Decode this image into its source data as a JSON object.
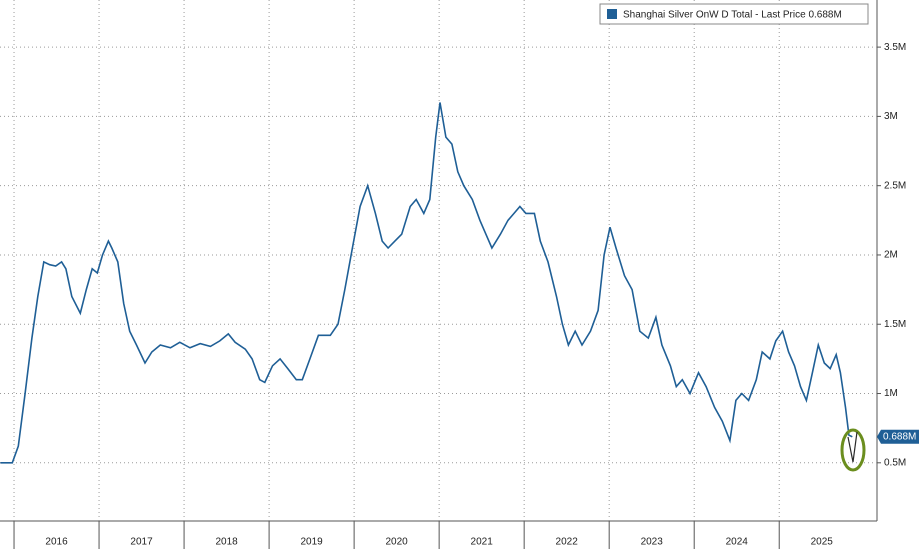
{
  "chart_data": {
    "type": "line",
    "series": [
      {
        "name": "Shanghai Silver OnW D Total - Last Price 0.688M",
        "color": "#1f5f96",
        "values": [
          0.5,
          0.5,
          0.62,
          1.0,
          1.4,
          1.7,
          1.95,
          1.93,
          1.92,
          1.95,
          1.9,
          1.7,
          1.58,
          1.75,
          1.9,
          1.87,
          2.0,
          2.1,
          2.05,
          1.95,
          1.65,
          1.45,
          1.35,
          1.22,
          1.3,
          1.35,
          1.33,
          1.37,
          1.33,
          1.36,
          1.34,
          1.38,
          1.43,
          1.37,
          1.32,
          1.25,
          1.1,
          1.08,
          1.2,
          1.25,
          1.18,
          1.1,
          1.1,
          1.25,
          1.42,
          1.42,
          1.5,
          1.75,
          2.05,
          2.35,
          2.5,
          2.3,
          2.1,
          2.05,
          2.1,
          2.15,
          2.35,
          2.4,
          2.3,
          2.4,
          2.85,
          3.1,
          2.85,
          2.8,
          2.6,
          2.5,
          2.4,
          2.25,
          2.15,
          2.05,
          2.15,
          2.25,
          2.3,
          2.35,
          2.3,
          2.3,
          2.1,
          1.95,
          1.7,
          1.5,
          1.35,
          1.45,
          1.35,
          1.45,
          1.6,
          2.0,
          2.2,
          2.05,
          1.85,
          1.75,
          1.45,
          1.4,
          1.55,
          1.35,
          1.2,
          1.05,
          1.1,
          1.0,
          1.15,
          1.05,
          0.9,
          0.8,
          0.66,
          0.95,
          1.0,
          0.95,
          1.1,
          1.3,
          1.25,
          1.38,
          1.45,
          1.3,
          1.2,
          1.05,
          0.95,
          1.15,
          1.35,
          1.22,
          1.18,
          1.28,
          1.15,
          0.9,
          0.7,
          0.688
        ]
      }
    ],
    "x": [
      2015.84,
      2015.98,
      2016.05,
      2016.13,
      2016.21,
      2016.28,
      2016.35,
      2016.42,
      2016.49,
      2016.56,
      2016.61,
      2016.68,
      2016.78,
      2016.85,
      2016.92,
      2016.98,
      2017.04,
      2017.11,
      2017.15,
      2017.22,
      2017.29,
      2017.36,
      2017.44,
      2017.54,
      2017.62,
      2017.72,
      2017.84,
      2017.95,
      2018.07,
      2018.19,
      2018.31,
      2018.42,
      2018.52,
      2018.6,
      2018.72,
      2018.8,
      2018.89,
      2018.95,
      2019.04,
      2019.13,
      2019.22,
      2019.32,
      2019.39,
      2019.48,
      2019.58,
      2019.72,
      2019.81,
      2019.89,
      2019.98,
      2020.07,
      2020.16,
      2020.25,
      2020.33,
      2020.4,
      2020.48,
      2020.56,
      2020.66,
      2020.73,
      2020.82,
      2020.89,
      2020.96,
      2021.01,
      2021.08,
      2021.15,
      2021.22,
      2021.29,
      2021.39,
      2021.48,
      2021.55,
      2021.62,
      2021.72,
      2021.81,
      2021.88,
      2021.95,
      2022.02,
      2022.12,
      2022.19,
      2022.28,
      2022.38,
      2022.45,
      2022.52,
      2022.6,
      2022.68,
      2022.78,
      2022.87,
      2022.94,
      2023.01,
      2023.08,
      2023.18,
      2023.27,
      2023.36,
      2023.46,
      2023.55,
      2023.62,
      2023.72,
      2023.79,
      2023.86,
      2023.95,
      2024.05,
      2024.14,
      2024.24,
      2024.33,
      2024.42,
      2024.49,
      2024.56,
      2024.64,
      2024.73,
      2024.8,
      2024.89,
      2024.96,
      2025.04,
      2025.11,
      2025.18,
      2025.25,
      2025.32,
      2025.39,
      2025.46,
      2025.53,
      2025.6,
      2025.67,
      2025.72,
      2025.78,
      2025.82,
      2025.86
    ],
    "xlim": [
      2015.835,
      2026.15
    ],
    "xticks": [
      2016,
      2017,
      2018,
      2019,
      2020,
      2021,
      2022,
      2023,
      2024,
      2025
    ],
    "ylim": [
      0.08,
      3.84
    ],
    "yticks": [
      {
        "value": 0.5,
        "label": "0.5M"
      },
      {
        "value": 1,
        "label": "1M"
      },
      {
        "value": 1.5,
        "label": "1.5M"
      },
      {
        "value": 2,
        "label": "2M"
      },
      {
        "value": 2.5,
        "label": "2.5M"
      },
      {
        "value": 3,
        "label": "3M"
      },
      {
        "value": 3.5,
        "label": "3.5M"
      }
    ],
    "last_price": {
      "value": 0.688,
      "label": "0.688M"
    },
    "grid": true
  }
}
